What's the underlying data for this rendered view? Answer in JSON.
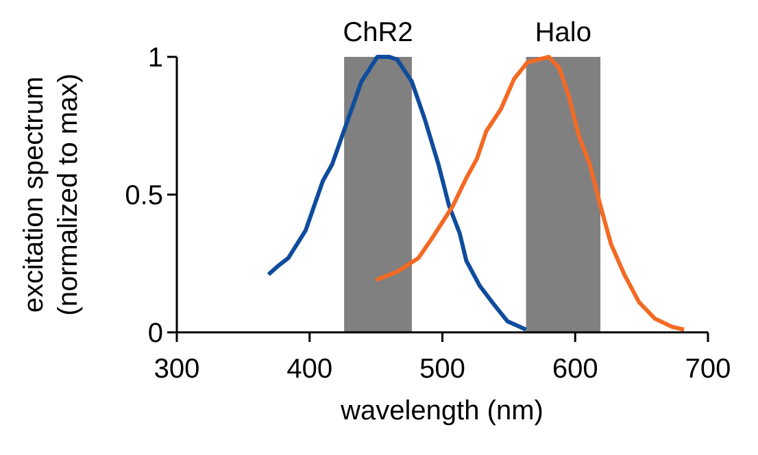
{
  "chart_data": {
    "type": "line",
    "title": "",
    "xlabel": "wavelength (nm)",
    "ylabel_line1": "excitation spectrum",
    "ylabel_line2": "(normalized to max)",
    "xlim": [
      300,
      700
    ],
    "ylim": [
      0,
      1
    ],
    "xticks": [
      300,
      400,
      500,
      600,
      700
    ],
    "xtick_labels": [
      "300",
      "400",
      "500",
      "600",
      "700"
    ],
    "yticks": [
      0,
      0.5,
      1
    ],
    "ytick_labels": [
      "0",
      "0.5",
      "1"
    ],
    "grid": false,
    "bands": [
      {
        "label": "ChR2",
        "x0": 426,
        "x1": 477,
        "color": "#808080"
      },
      {
        "label": "Halo",
        "x0": 563,
        "x1": 619,
        "color": "#808080"
      }
    ],
    "series": [
      {
        "color": "#0f4c9c",
        "x": [
          369,
          376,
          384,
          397,
          410,
          417,
          425,
          439,
          451,
          460,
          466,
          477,
          487,
          497,
          505,
          513,
          518,
          528,
          539,
          549,
          563
        ],
        "y": [
          0.21,
          0.24,
          0.27,
          0.37,
          0.55,
          0.61,
          0.72,
          0.91,
          1.0,
          1.0,
          0.99,
          0.91,
          0.77,
          0.61,
          0.46,
          0.36,
          0.26,
          0.17,
          0.1,
          0.04,
          0.01
        ]
      },
      {
        "color": "#f36a24",
        "x": [
          450,
          466,
          482,
          492,
          508,
          518,
          526,
          533,
          544,
          554,
          564,
          580,
          588,
          595,
          603,
          611,
          619,
          627,
          637,
          648,
          660,
          673,
          682
        ],
        "y": [
          0.19,
          0.22,
          0.27,
          0.34,
          0.46,
          0.56,
          0.63,
          0.73,
          0.81,
          0.92,
          0.98,
          1.0,
          0.96,
          0.86,
          0.71,
          0.61,
          0.46,
          0.32,
          0.21,
          0.11,
          0.05,
          0.02,
          0.01
        ]
      }
    ]
  }
}
